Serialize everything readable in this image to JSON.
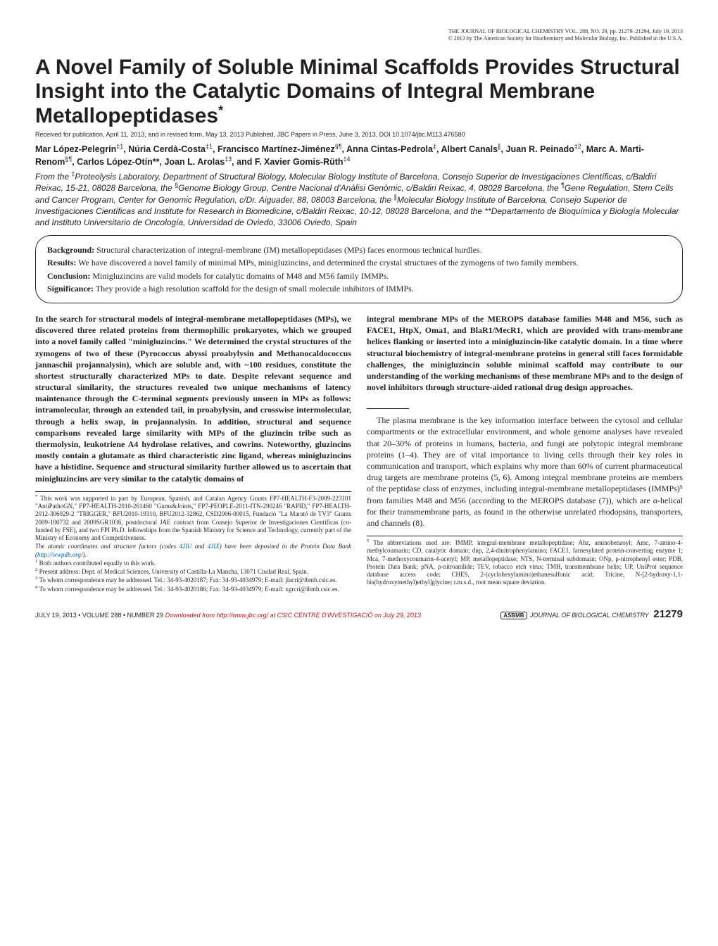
{
  "meta": {
    "line1": "THE JOURNAL OF BIOLOGICAL CHEMISTRY  VOL. 288, NO. 29, pp. 21279–21294, July 19, 2013",
    "line2": "© 2013 by The American Society for Biochemistry and Molecular Biology, Inc.   Published in the U.S.A."
  },
  "title": "A Novel Family of Soluble Minimal Scaffolds Provides Structural Insight into the Catalytic Domains of Integral Membrane Metallopeptidases",
  "title_sup": "*",
  "received": "Received for publication, April 11, 2013, and in revised form, May 13, 2013   Published, JBC Papers in Press, June 3, 2013, DOI 10.1074/jbc.M113.476580",
  "authors_html": "Mar López-Pelegrín<sup>‡1</sup>, Núria Cerdà-Costa<sup>‡1</sup>, Francisco Martínez-Jiménez<sup>§¶</sup>, Anna Cintas-Pedrola<sup>‡</sup>, Albert Canals<sup>∥</sup>, Juan R. Peinado<sup>‡2</sup>, Marc A. Marti-Renom<sup>§¶</sup>, Carlos López-Otín**, Joan L. Arolas<sup>‡3</sup>, and F. Xavier Gomis-Rüth<sup>‡4</sup>",
  "affil_html": "From the <sup>‡</sup>Proteolysis Laboratory, Department of Structural Biology, Molecular Biology Institute of Barcelona, Consejo Superior de Investigaciones Científicas, c/Baldiri Reixac, 15-21, 08028 Barcelona, the <sup>§</sup>Genome Biology Group, Centre Nacional d'Anàlisi Genòmic, c/Baldiri Reixac, 4, 08028 Barcelona, the <sup>¶</sup>Gene Regulation, Stem Cells and Cancer Program, Center for Genomic Regulation, c/Dr. Aiguader, 88, 08003 Barcelona, the <sup>∥</sup>Molecular Biology Institute of Barcelona, Consejo Superior de Investigaciones Científicas and Institute for Research in Biomedicine, c/Baldiri Reixac, 10-12, 08028 Barcelona, and the **Departamento de Bioquímica y Biología Molecular and Instituto Universitario de Oncología, Universidad de Oviedo, 33006 Oviedo, Spain",
  "capsule": {
    "background_label": "Background:",
    "background_text": " Structural characterization of integral-membrane (IM) metallopeptidases (MPs) faces enormous technical hurdles.",
    "results_label": "Results:",
    "results_text": " We have discovered a novel family of minimal MPs, minigluzincins, and determined the crystal structures of the zymogens of two family members.",
    "conclusion_label": "Conclusion:",
    "conclusion_text": " Minigluzincins are valid models for catalytic domains of M48 and M56 family IMMPs.",
    "significance_label": "Significance:",
    "significance_text": " They provide a high resolution scaffold for the design of small molecule inhibitors of IMMPs."
  },
  "abstract": {
    "left": "In the search for structural models of integral-membrane metallopeptidases (MPs), we discovered three related proteins from thermophilic prokaryotes, which we grouped into a novel family called \"minigluzincins.\" We determined the crystal structures of the zymogens of two of these (Pyrococcus abyssi proabylysin and Methanocaldococcus jannaschii projannalysin), which are soluble and, with ~100 residues, constitute the shortest structurally characterized MPs to date. Despite relevant sequence and structural similarity, the structures revealed two unique mechanisms of latency maintenance through the C-terminal segments previously unseen in MPs as follows: intramolecular, through an extended tail, in proabylysin, and crosswise intermolecular, through a helix swap, in projannalysin. In addition, structural and sequence comparisons revealed large similarity with MPs of the gluzincin tribe such as thermolysin, leukotriene A4 hydrolase relatives, and cowrins. Noteworthy, gluzincins mostly contain a glutamate as third characteristic zinc ligand, whereas minigluzincins have a histidine. Sequence and structural similarity further allowed us to ascertain that minigluzincins are very similar to the catalytic domains of",
    "right": "integral membrane MPs of the MEROPS database families M48 and M56, such as FACE1, HtpX, Oma1, and BlaR1/MecR1, which are provided with trans-membrane helices flanking or inserted into a minigluzincin-like catalytic domain. In a time where structural biochemistry of integral-membrane proteins in general still faces formidable challenges, the minigluzincin soluble minimal scaffold may contribute to our understanding of the working mechanisms of these membrane MPs and to the design of novel inhibitors through structure-aided rational drug design approaches."
  },
  "body_right": "The plasma membrane is the key information interface between the cytosol and cellular compartments or the extracellular environment, and whole genome analyses have revealed that 20–30% of proteins in humans, bacteria, and fungi are polytopic integral membrane proteins (1–4). They are of vital importance to living cells through their key roles in communication and transport, which explains why more than 60% of current pharmaceutical drug targets are membrane proteins (5, 6). Among integral membrane proteins are members of the peptidase class of enzymes, including integral-membrane metallopeptidases (IMMPs)⁵ from families M48 and M56 (according to the MEROPS database (7)), which are α-helical for their transmembrane parts, as found in the otherwise unrelated rhodopsins, transporters, and channels (8).",
  "footnote_left": {
    "star": "This work was supported in part by European, Spanish, and Catalan Agency Grants FP7-HEALTH-F3-2009-223101 \"AntiPathoGN,\" FP7-HEALTH-2010-261460 \"Gums&Joints,\" FP7-PEOPLE-2011-ITN-290246 \"RAPID,\" FP7-HEALTH-2012-306029-2 \"TRIGGER,\" BFU2010-19310, BFU2012-32862, CSD2006-00015, Fundació \"La Marató de TV3\" Grants 2009-100732 and 2009SGR1036, postdoctoral JAE contract from Consejo Superior de Investigaciones Científicas (co-funded by FSE), and two FPI Ph.D. fellowships from the Spanish Ministry for Science and Technology, currently part of the Ministry of Economy and Competitiveness.",
    "coords1": "The atomic coordinates and structure factors (codes ",
    "coords_link1": "4JIU",
    "coords_mid": " and ",
    "coords_link2": "4JIX",
    "coords2": ") have been deposited in the Protein Data Bank (",
    "coords_url": "http://wwpdb.org/",
    "coords3": ").",
    "f1": "Both authors contributed equally to this work.",
    "f2": "Present address: Dept. of Medical Sciences, University of Castilla-La Mancha, 13071 Ciudad Real, Spain.",
    "f3": "To whom correspondence may be addressed. Tel.: 34-93-4020187; Fax: 34-93-4034979; E-mail: jlacri@ibmb.csic.es.",
    "f4": "To whom correspondence may be addressed. Tel.: 34-93-4020186; Fax: 34-93-4034979; E-mail: xgrcri@ibmb.csic.es."
  },
  "footnote_right": {
    "f5": "The abbreviations used are: IMMP, integral-membrane metallopeptidase; Abz, aminobenzoyl; Amc, 7-amino-4-methylcoumarin; CD, catalytic domain; dnp, 2,4-dinitrophenylamino; FACE1, farnesylated protein-converting enzyme 1; Mca, 7-methoxycoumarin-4-acetyl; MP, metallopeptidase; NTS, N-terminal subdomain; ONp, p-nitrophenyl ester; PDB, Protein Data Bank; pNA, p-nitroanilide; TEV, tobacco etch virus; TMH, transmembrane helix; UP, UniProt sequence database access code; CHES, 2-(cyclohexylamino)ethanesulfonic acid; Tricine, N-[2-hydroxy-1,1-bis(hydroxymethyl)ethyl]glycine; r.m.s.d., root mean square deviation."
  },
  "footer": {
    "left1": "JULY 19, 2013 • VOLUME 288 • NUMBER 29",
    "left2": "Downloaded from ",
    "left3": " at CSIC CENTRE D'INVESTIGACIÓ on July 29, 2013",
    "url": "http://www.jbc.org/",
    "right_label": "JOURNAL OF BIOLOGICAL CHEMISTRY",
    "page": "21279"
  }
}
